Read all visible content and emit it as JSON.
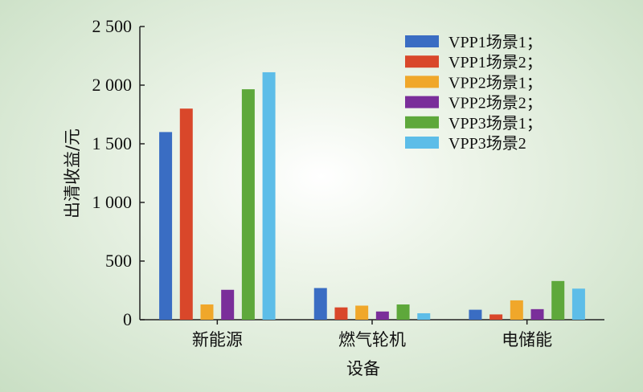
{
  "chart_data": {
    "type": "bar",
    "categories": [
      "新能源",
      "燃气轮机",
      "电储能"
    ],
    "series": [
      {
        "name": "VPP1场景1；",
        "color": "#3a6dc3",
        "values": [
          1600,
          270,
          85
        ]
      },
      {
        "name": "VPP1场景2；",
        "color": "#d9472a",
        "values": [
          1800,
          105,
          45
        ]
      },
      {
        "name": "VPP2场景1；",
        "color": "#f0a72a",
        "values": [
          130,
          120,
          165
        ]
      },
      {
        "name": "VPP2场景2；",
        "color": "#7a2e9a",
        "values": [
          255,
          70,
          90
        ]
      },
      {
        "name": "VPP3场景1；",
        "color": "#5ea83b",
        "values": [
          1965,
          130,
          330
        ]
      },
      {
        "name": "VPP3场景2",
        "color": "#5dbde8",
        "values": [
          2110,
          55,
          265
        ]
      }
    ],
    "xlabel": "设备",
    "ylabel": "出清收益/元",
    "ylim": [
      0,
      2500
    ],
    "yticks": [
      0,
      500,
      1000,
      1500,
      2000,
      2500
    ],
    "ytick_labels": [
      "0",
      "500",
      "1 000",
      "1 500",
      "2 000",
      "2 500"
    ],
    "legend_position": "top-right",
    "grid": false
  }
}
